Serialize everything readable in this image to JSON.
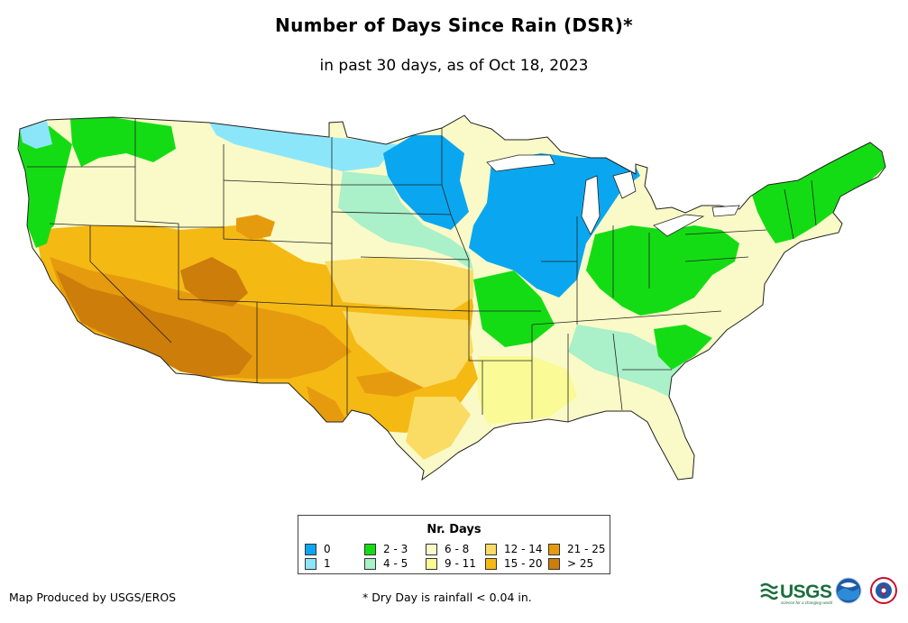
{
  "header": {
    "title": "Number of Days Since Rain (DSR)*",
    "subtitle": "in past 30 days, as of Oct 18, 2023"
  },
  "legend": {
    "title": "Nr. Days",
    "items": [
      {
        "label": "0",
        "color": "#0aa7f0"
      },
      {
        "label": "1",
        "color": "#8ce6fa"
      },
      {
        "label": "2 - 3",
        "color": "#14dc14"
      },
      {
        "label": "4 - 5",
        "color": "#aaf0c8"
      },
      {
        "label": "6 - 8",
        "color": "#fafac8"
      },
      {
        "label": "9 - 11",
        "color": "#fafa96"
      },
      {
        "label": "12 - 14",
        "color": "#fadc64"
      },
      {
        "label": "15 - 20",
        "color": "#f5b914"
      },
      {
        "label": "21 - 25",
        "color": "#e69b0f"
      },
      {
        "label": "> 25",
        "color": "#cd7d0a"
      }
    ]
  },
  "footer": {
    "producer": "Map Produced by USGS/EROS",
    "note": "* Dry Day is rainfall < 0.04 in."
  },
  "logos": {
    "usgs": "USGS",
    "usgs_tagline": "science for a changing world",
    "noaa": "NOAA",
    "nws": "NWS"
  }
}
